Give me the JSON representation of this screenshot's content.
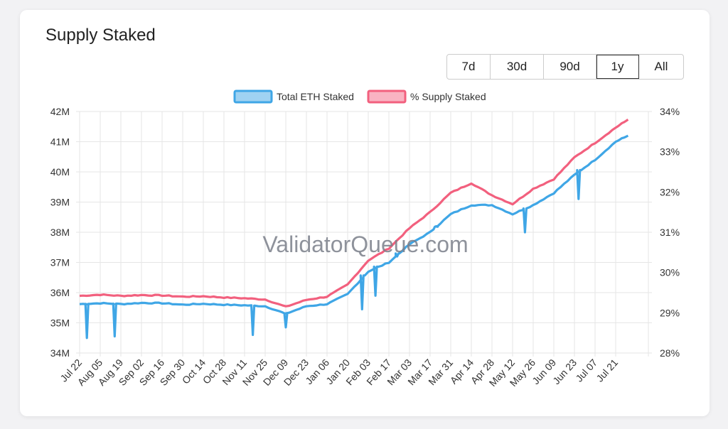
{
  "title": "Supply Staked",
  "range_buttons": [
    {
      "label": "7d",
      "active": false
    },
    {
      "label": "30d",
      "active": false
    },
    {
      "label": "90d",
      "active": false
    },
    {
      "label": "1y",
      "active": true
    },
    {
      "label": "All",
      "active": false
    }
  ],
  "watermark": "ValidatorQueue.com",
  "chart_data": {
    "type": "line",
    "title": "",
    "x_tick_labels": [
      "Jul 22",
      "Aug 05",
      "Aug 19",
      "Sep 02",
      "Sep 16",
      "Sep 30",
      "Oct 14",
      "Oct 28",
      "Nov 11",
      "Nov 25",
      "Dec 09",
      "Dec 23",
      "Jan 06",
      "Jan 20",
      "Feb 03",
      "Feb 17",
      "Mar 03",
      "Mar 17",
      "Mar 31",
      "Apr 14",
      "Apr 28",
      "May 12",
      "May 26",
      "Jun 09",
      "Jun 23",
      "Jul 07",
      "Jul 21"
    ],
    "y_left": {
      "ticks": [
        "34M",
        "35M",
        "36M",
        "37M",
        "38M",
        "39M",
        "40M",
        "41M",
        "42M"
      ],
      "min": 34,
      "max": 42,
      "unit": "M"
    },
    "y_right": {
      "ticks": [
        "28%",
        "29%",
        "30%",
        "31%",
        "32%",
        "33%",
        "34%"
      ],
      "min": 28,
      "max": 34,
      "unit": "%"
    },
    "grid": true,
    "legend_position": "top-center",
    "series": [
      {
        "name": "Total ETH Staked",
        "axis": "left",
        "color": "#3fa6e6",
        "fill": "#9fd2f2",
        "x_index": [
          0,
          1,
          2,
          3,
          4,
          5,
          6,
          7,
          8,
          9,
          10,
          11,
          12,
          13,
          14,
          15,
          16,
          17,
          18,
          19,
          20,
          21,
          22,
          23,
          24,
          25,
          26,
          26.6
        ],
        "values": [
          35.62,
          35.65,
          35.62,
          35.66,
          35.65,
          35.6,
          35.63,
          35.6,
          35.58,
          35.55,
          35.3,
          35.55,
          35.62,
          35.95,
          36.7,
          37.0,
          37.6,
          38.0,
          38.6,
          38.9,
          38.9,
          38.6,
          38.9,
          39.3,
          39.9,
          40.4,
          41.0,
          41.2
        ],
        "dips": [
          {
            "x_index": 0.35,
            "value": 34.5
          },
          {
            "x_index": 1.7,
            "value": 34.55
          },
          {
            "x_index": 8.4,
            "value": 34.6
          },
          {
            "x_index": 10.0,
            "value": 34.85
          },
          {
            "x_index": 13.7,
            "value": 35.45
          },
          {
            "x_index": 14.35,
            "value": 35.9
          },
          {
            "x_index": 15.4,
            "value": 37.2
          },
          {
            "x_index": 17.3,
            "value": 38.2
          },
          {
            "x_index": 21.6,
            "value": 38.0
          },
          {
            "x_index": 24.2,
            "value": 39.1
          }
        ]
      },
      {
        "name": "% Supply Staked",
        "axis": "right",
        "color": "#f2607e",
        "fill": "#f9b3c2",
        "x_index": [
          0,
          1,
          2,
          3,
          4,
          5,
          6,
          7,
          8,
          9,
          10,
          11,
          12,
          13,
          14,
          15,
          16,
          17,
          18,
          19,
          20,
          21,
          22,
          23,
          24,
          25,
          26,
          26.6
        ],
        "values": [
          29.42,
          29.45,
          29.42,
          29.44,
          29.43,
          29.4,
          29.41,
          29.38,
          29.36,
          29.33,
          29.15,
          29.32,
          29.4,
          29.7,
          30.3,
          30.6,
          31.1,
          31.5,
          31.98,
          32.22,
          31.92,
          31.7,
          32.08,
          32.32,
          32.86,
          33.22,
          33.6,
          33.8
        ]
      }
    ]
  }
}
